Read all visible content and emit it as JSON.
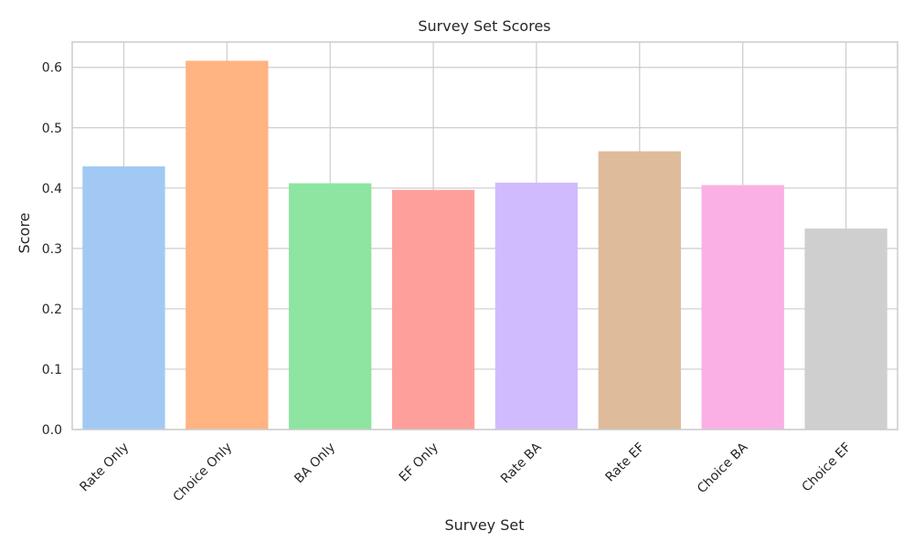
{
  "chart_data": {
    "type": "bar",
    "title": "Survey Set Scores",
    "xlabel": "Survey Set",
    "ylabel": "Score",
    "categories": [
      "Rate Only",
      "Choice Only",
      "BA Only",
      "EF Only",
      "Rate BA",
      "Rate EF",
      "Choice BA",
      "Choice EF"
    ],
    "values": [
      0.436,
      0.611,
      0.408,
      0.397,
      0.409,
      0.461,
      0.405,
      0.333
    ],
    "colors": [
      "#a1c9f4",
      "#ffb482",
      "#8de5a1",
      "#ff9f9b",
      "#d0bbff",
      "#debb9b",
      "#fab0e4",
      "#cfcfcf"
    ],
    "ylim": [
      0,
      0.642
    ],
    "yticks": [
      0.0,
      0.1,
      0.2,
      0.3,
      0.4,
      0.5,
      0.6
    ],
    "ytick_labels": [
      "0.0",
      "0.1",
      "0.2",
      "0.3",
      "0.4",
      "0.5",
      "0.6"
    ],
    "grid": true,
    "gridline_color": "#cccccc",
    "spine_color": "#cccccc",
    "xtick_rotation_deg": 45
  }
}
